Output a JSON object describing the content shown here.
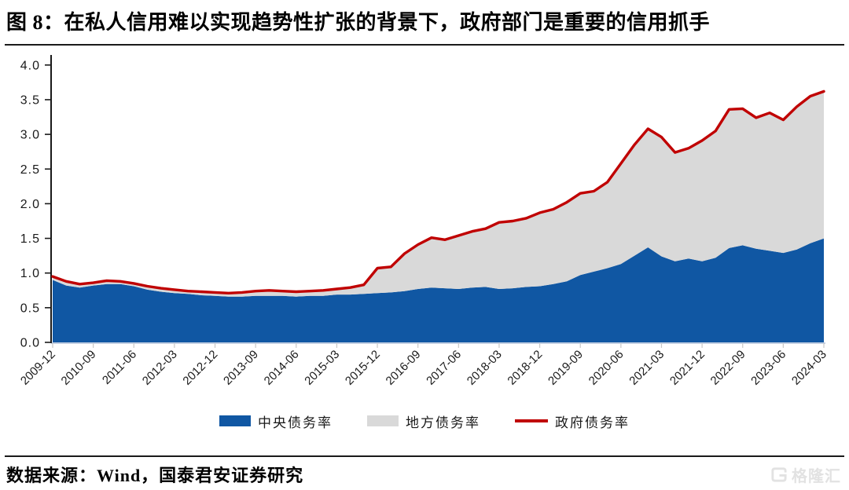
{
  "title": "图 8：在私人信用难以实现趋势性扩张的背景下，政府部门是重要的信用抓手",
  "footer": {
    "source": "数据来源：Wind，国泰君安证券研究"
  },
  "watermark": {
    "icon": "gelonghui-g-logo-icon",
    "text": "格隆汇"
  },
  "axis_colors": {
    "y_axis": "#1a1a1a",
    "x_baseline": "#aebfd8",
    "x_tick": "#c8c8c8",
    "label_text": "#1a1a1a"
  },
  "chart_data": {
    "type": "area",
    "stacked": true,
    "grid": false,
    "legend_position": "bottom",
    "ylim": [
      0.0,
      4.0
    ],
    "y_tick_step": 0.5,
    "y_tick_labels": [
      "0.0",
      "0.5",
      "1.0",
      "1.5",
      "2.0",
      "2.5",
      "3.0",
      "3.5",
      "4.0"
    ],
    "x_tick_every": 3,
    "x_tick_labels": [
      "2009-12",
      "2010-09",
      "2011-06",
      "2012-03",
      "2012-12",
      "2013-09",
      "2014-06",
      "2015-03",
      "2015-12",
      "2016-09",
      "2017-06",
      "2018-03",
      "2018-12",
      "2019-09",
      "2020-06",
      "2021-03",
      "2021-12",
      "2022-09",
      "2023-06",
      "2024-03"
    ],
    "x": [
      "2009-12",
      "2010-03",
      "2010-06",
      "2010-09",
      "2010-12",
      "2011-03",
      "2011-06",
      "2011-09",
      "2011-12",
      "2012-03",
      "2012-06",
      "2012-09",
      "2012-12",
      "2013-03",
      "2013-06",
      "2013-09",
      "2013-12",
      "2014-03",
      "2014-06",
      "2014-09",
      "2014-12",
      "2015-03",
      "2015-06",
      "2015-09",
      "2015-12",
      "2016-03",
      "2016-06",
      "2016-09",
      "2016-12",
      "2017-03",
      "2017-06",
      "2017-09",
      "2017-12",
      "2018-03",
      "2018-06",
      "2018-09",
      "2018-12",
      "2019-03",
      "2019-06",
      "2019-09",
      "2019-12",
      "2020-03",
      "2020-06",
      "2020-09",
      "2020-12",
      "2021-03",
      "2021-06",
      "2021-09",
      "2021-12",
      "2022-03",
      "2022-06",
      "2022-09",
      "2022-12",
      "2023-03",
      "2023-06",
      "2023-09",
      "2023-12",
      "2024-03"
    ],
    "series": [
      {
        "name": "中央债务率",
        "type": "area",
        "color": "#1057a3",
        "values": [
          0.9,
          0.82,
          0.79,
          0.82,
          0.84,
          0.84,
          0.81,
          0.76,
          0.73,
          0.71,
          0.7,
          0.68,
          0.67,
          0.66,
          0.66,
          0.67,
          0.67,
          0.67,
          0.66,
          0.67,
          0.67,
          0.69,
          0.69,
          0.7,
          0.71,
          0.72,
          0.74,
          0.77,
          0.79,
          0.78,
          0.77,
          0.79,
          0.8,
          0.77,
          0.78,
          0.8,
          0.81,
          0.84,
          0.88,
          0.97,
          1.02,
          1.07,
          1.13,
          1.25,
          1.37,
          1.24,
          1.17,
          1.21,
          1.17,
          1.22,
          1.36,
          1.4,
          1.35,
          1.32,
          1.29,
          1.34,
          1.43,
          1.5
        ]
      },
      {
        "name": "地方债务率",
        "type": "area",
        "color": "#d9d9d9",
        "values": [
          0.05,
          0.06,
          0.05,
          0.04,
          0.05,
          0.04,
          0.04,
          0.05,
          0.05,
          0.05,
          0.04,
          0.05,
          0.05,
          0.05,
          0.06,
          0.07,
          0.08,
          0.07,
          0.07,
          0.07,
          0.08,
          0.08,
          0.1,
          0.13,
          0.36,
          0.37,
          0.54,
          0.64,
          0.72,
          0.7,
          0.77,
          0.81,
          0.84,
          0.96,
          0.97,
          0.99,
          1.06,
          1.08,
          1.14,
          1.18,
          1.16,
          1.24,
          1.45,
          1.6,
          1.71,
          1.72,
          1.57,
          1.59,
          1.74,
          1.83,
          2.0,
          1.97,
          1.89,
          1.99,
          1.92,
          2.06,
          2.12,
          2.12
        ]
      },
      {
        "name": "政府债务率",
        "type": "line",
        "color": "#c00000",
        "values": [
          0.95,
          0.88,
          0.84,
          0.86,
          0.89,
          0.88,
          0.85,
          0.81,
          0.78,
          0.76,
          0.74,
          0.73,
          0.72,
          0.71,
          0.72,
          0.74,
          0.75,
          0.74,
          0.73,
          0.74,
          0.75,
          0.77,
          0.79,
          0.83,
          1.07,
          1.09,
          1.28,
          1.41,
          1.51,
          1.48,
          1.54,
          1.6,
          1.64,
          1.73,
          1.75,
          1.79,
          1.87,
          1.92,
          2.02,
          2.15,
          2.18,
          2.31,
          2.58,
          2.85,
          3.08,
          2.96,
          2.74,
          2.8,
          2.91,
          3.05,
          3.36,
          3.37,
          3.24,
          3.31,
          3.21,
          3.4,
          3.55,
          3.62
        ]
      }
    ]
  }
}
